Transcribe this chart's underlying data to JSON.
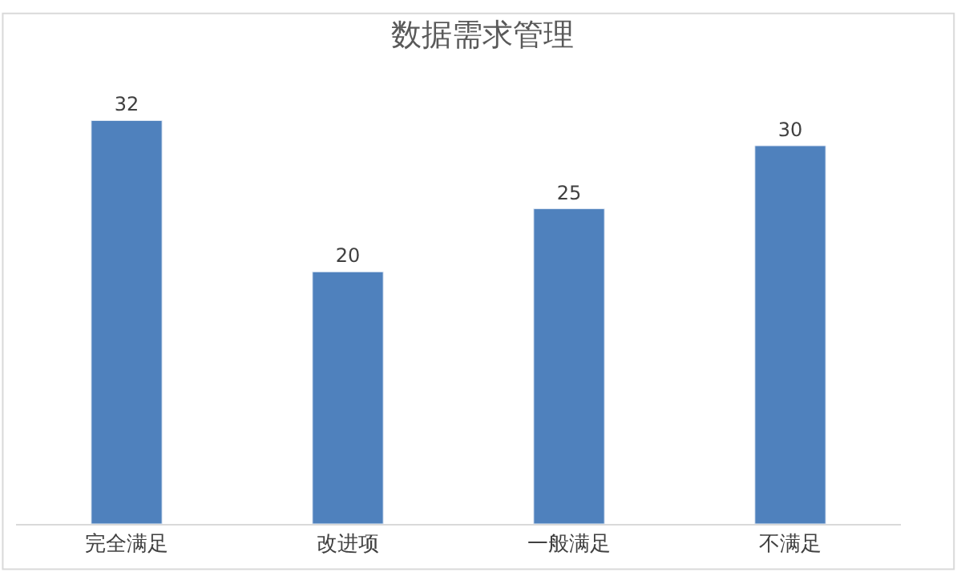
{
  "chart_data": {
    "type": "bar",
    "title": "数据需求管理",
    "categories": [
      "完全满足",
      "改进项",
      "一般满足",
      "不满足"
    ],
    "values": [
      32,
      20,
      25,
      30
    ],
    "color": "#4f81bd",
    "data_labels": true,
    "legend": false
  }
}
